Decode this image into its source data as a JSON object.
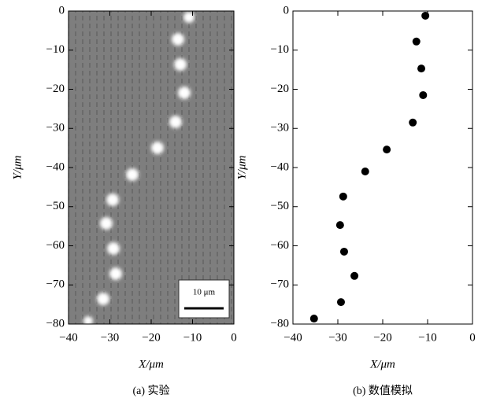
{
  "chart_data": [
    {
      "type": "image",
      "xlabel": "X/μm",
      "ylabel": "Y/μm",
      "caption": "(a) 实验",
      "scale_bar_label": "10 μm",
      "xlim": [
        -40,
        0
      ],
      "ylim": [
        -80,
        0
      ],
      "xticks": [
        {
          "value": -40,
          "label": "−40"
        },
        {
          "value": -30,
          "label": "−30"
        },
        {
          "value": -20,
          "label": "−20"
        },
        {
          "value": -10,
          "label": "−10"
        },
        0
      ],
      "yticks": [
        0,
        {
          "value": -10,
          "label": "−10"
        },
        {
          "value": -20,
          "label": "−20"
        },
        {
          "value": -30,
          "label": "−30"
        },
        {
          "value": -40,
          "label": "−40"
        },
        {
          "value": -50,
          "label": "−50"
        },
        {
          "value": -60,
          "label": "−60"
        },
        {
          "value": -70,
          "label": "−70"
        },
        {
          "value": -80,
          "label": "−80"
        }
      ]
    },
    {
      "type": "scatter",
      "xlabel": "X/μm",
      "ylabel": "Y/μm",
      "caption": "(b) 数值模拟",
      "color": "#000000",
      "x": [
        -10.5,
        -12.5,
        -11.4,
        -11,
        -13.3,
        -19.1,
        -23.9,
        -28.8,
        -29.5,
        -28.6,
        -26.3,
        -29.3,
        -35.3
      ],
      "y": [
        -1.2,
        -7.8,
        -14.7,
        -21.5,
        -28.5,
        -35.4,
        -41,
        -47.4,
        -54.7,
        -61.5,
        -67.7,
        -74.4,
        -78.6
      ],
      "xlim": [
        -40,
        0
      ],
      "ylim": [
        -80,
        0
      ],
      "xticks": [
        {
          "value": -40,
          "label": "−40"
        },
        {
          "value": -30,
          "label": "−30"
        },
        {
          "value": -20,
          "label": "−20"
        },
        {
          "value": -10,
          "label": "−10"
        },
        0
      ],
      "yticks": [
        0,
        {
          "value": -10,
          "label": "−10"
        },
        {
          "value": -20,
          "label": "−20"
        },
        {
          "value": -30,
          "label": "−30"
        },
        {
          "value": -40,
          "label": "−40"
        },
        {
          "value": -50,
          "label": "−50"
        },
        {
          "value": -60,
          "label": "−60"
        },
        {
          "value": -70,
          "label": "−70"
        },
        {
          "value": -80,
          "label": "−80"
        }
      ]
    }
  ]
}
